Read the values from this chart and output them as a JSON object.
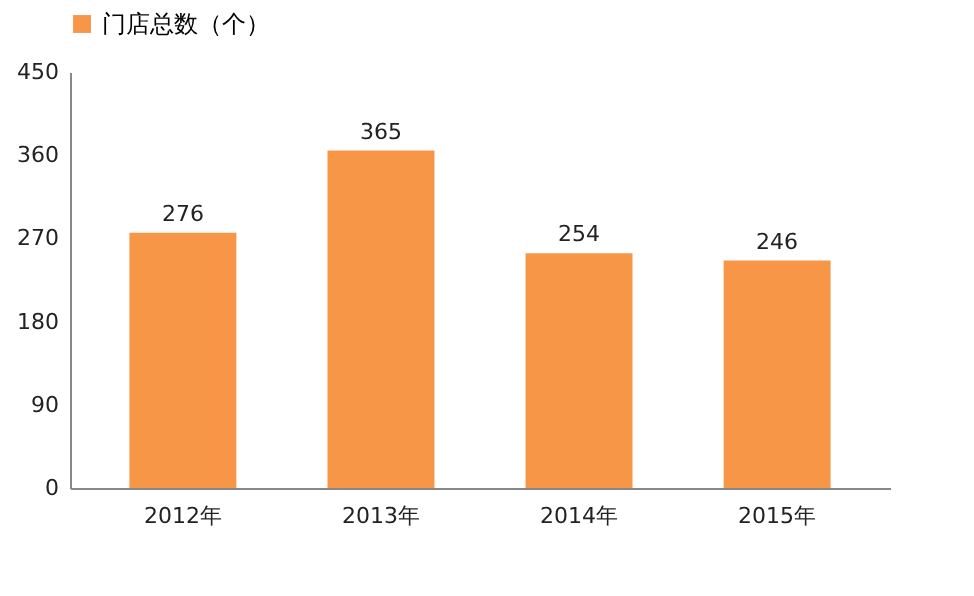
{
  "chart_data": {
    "type": "bar",
    "categories": [
      "2012年",
      "2013年",
      "2014年",
      "2015年"
    ],
    "series": [
      {
        "name": "门店总数（个）",
        "color": "#f79646",
        "values": [
          276,
          365,
          254,
          246
        ]
      }
    ],
    "ylim": [
      0,
      450
    ],
    "yticks": [
      0,
      90,
      180,
      270,
      360,
      450
    ],
    "grid": false,
    "legend": "top",
    "data_labels": true
  }
}
